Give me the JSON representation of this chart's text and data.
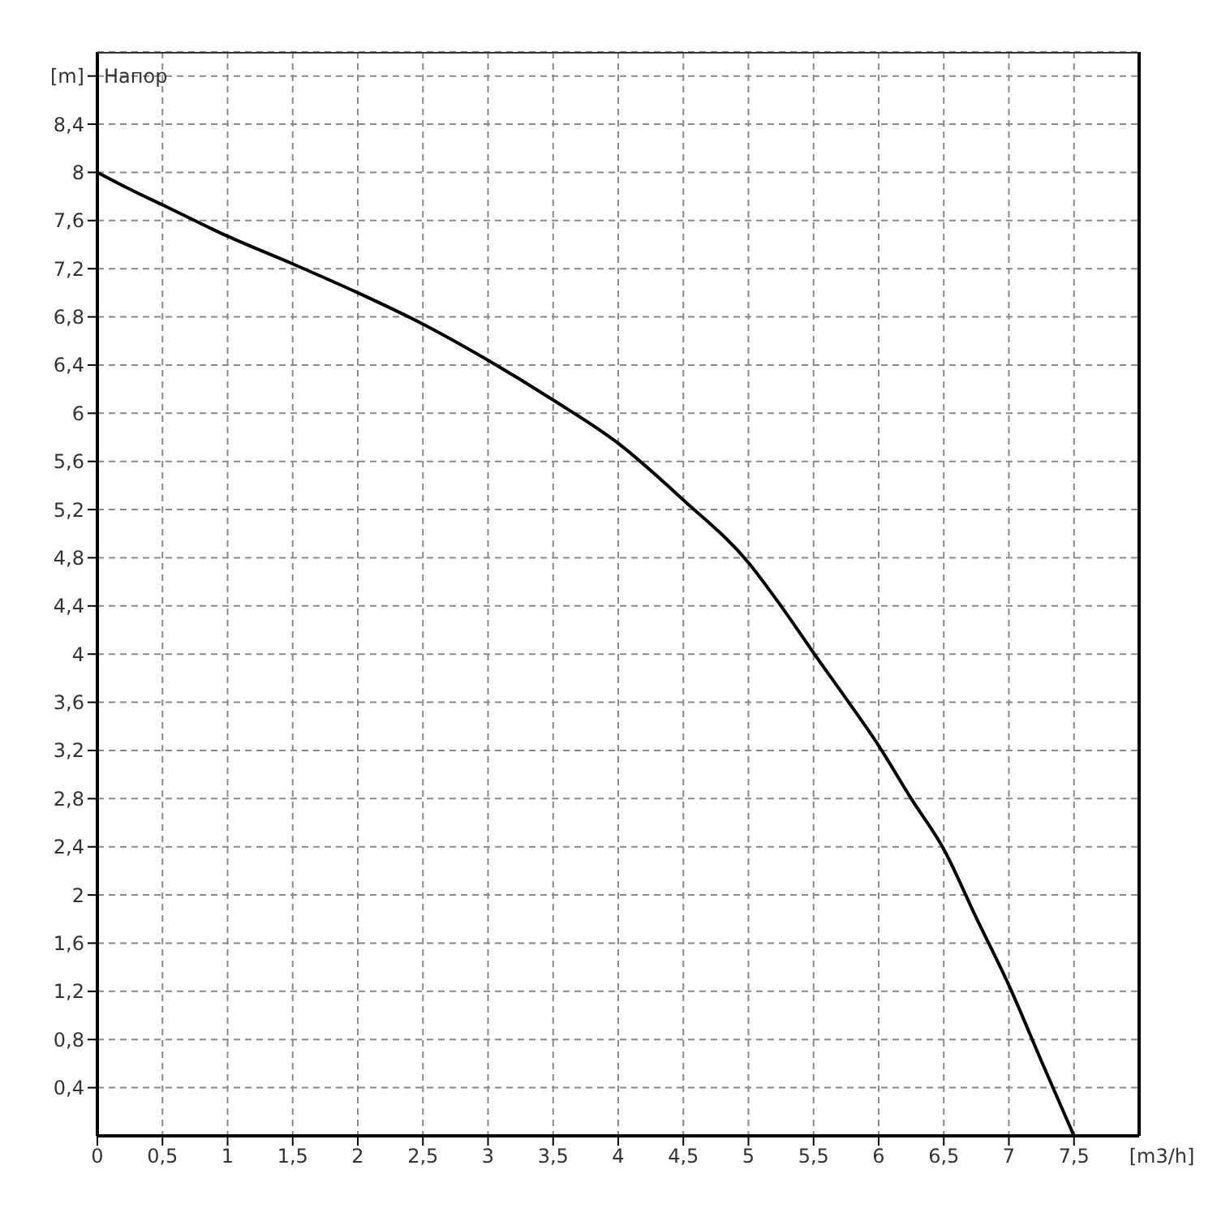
{
  "chart_data": {
    "type": "line",
    "title": "Напор",
    "xlabel": "[m3/h]",
    "ylabel": "[m]",
    "x": [
      0,
      0.25,
      0.5,
      1,
      1.5,
      2,
      2.5,
      3,
      3.5,
      4,
      4.5,
      5,
      5.25,
      5.5,
      5.75,
      6,
      6.25,
      6.5,
      6.75,
      7,
      7.25,
      7.5
    ],
    "series": [
      {
        "color": "#000000",
        "values": [
          8.0,
          7.86,
          7.73,
          7.47,
          7.24,
          7.0,
          6.74,
          6.44,
          6.11,
          5.75,
          5.28,
          4.76,
          4.4,
          4.01,
          3.63,
          3.24,
          2.8,
          2.38,
          1.81,
          1.25,
          0.62,
          0
        ]
      }
    ],
    "xlim": [
      0,
      8
    ],
    "ylim": [
      0,
      9
    ],
    "xticks": [
      0,
      {
        "value": 0.5,
        "label": "0,5"
      },
      1,
      {
        "value": 1.5,
        "label": "1,5"
      },
      2,
      {
        "value": 2.5,
        "label": "2,5"
      },
      3,
      {
        "value": 3.5,
        "label": "3,5"
      },
      4,
      {
        "value": 4.5,
        "label": "4,5"
      },
      5,
      {
        "value": 5.5,
        "label": "5,5"
      },
      6,
      {
        "value": 6.5,
        "label": "6,5"
      },
      7,
      {
        "value": 7.5,
        "label": "7,5"
      }
    ],
    "yticks": [
      {
        "value": 0.4,
        "label": "0,4"
      },
      {
        "value": 0.8,
        "label": "0,8"
      },
      {
        "value": 1.2,
        "label": "1,2"
      },
      {
        "value": 1.6,
        "label": "1,6"
      },
      2,
      {
        "value": 2.4,
        "label": "2,4"
      },
      {
        "value": 2.8,
        "label": "2,8"
      },
      {
        "value": 3.2,
        "label": "3,2"
      },
      {
        "value": 3.6,
        "label": "3,6"
      },
      4,
      {
        "value": 4.4,
        "label": "4,4"
      },
      {
        "value": 4.8,
        "label": "4,8"
      },
      {
        "value": 5.2,
        "label": "5,2"
      },
      {
        "value": 5.6,
        "label": "5,6"
      },
      6,
      {
        "value": 6.4,
        "label": "6,4"
      },
      {
        "value": 6.8,
        "label": "6,8"
      },
      {
        "value": 7.2,
        "label": "7,2"
      },
      {
        "value": 7.6,
        "label": "7,6"
      },
      8,
      {
        "value": 8.4,
        "label": "8,4"
      },
      {
        "value": 8.8,
        "label": null
      }
    ],
    "grid": true,
    "marker": "none",
    "line_style": "solid"
  }
}
